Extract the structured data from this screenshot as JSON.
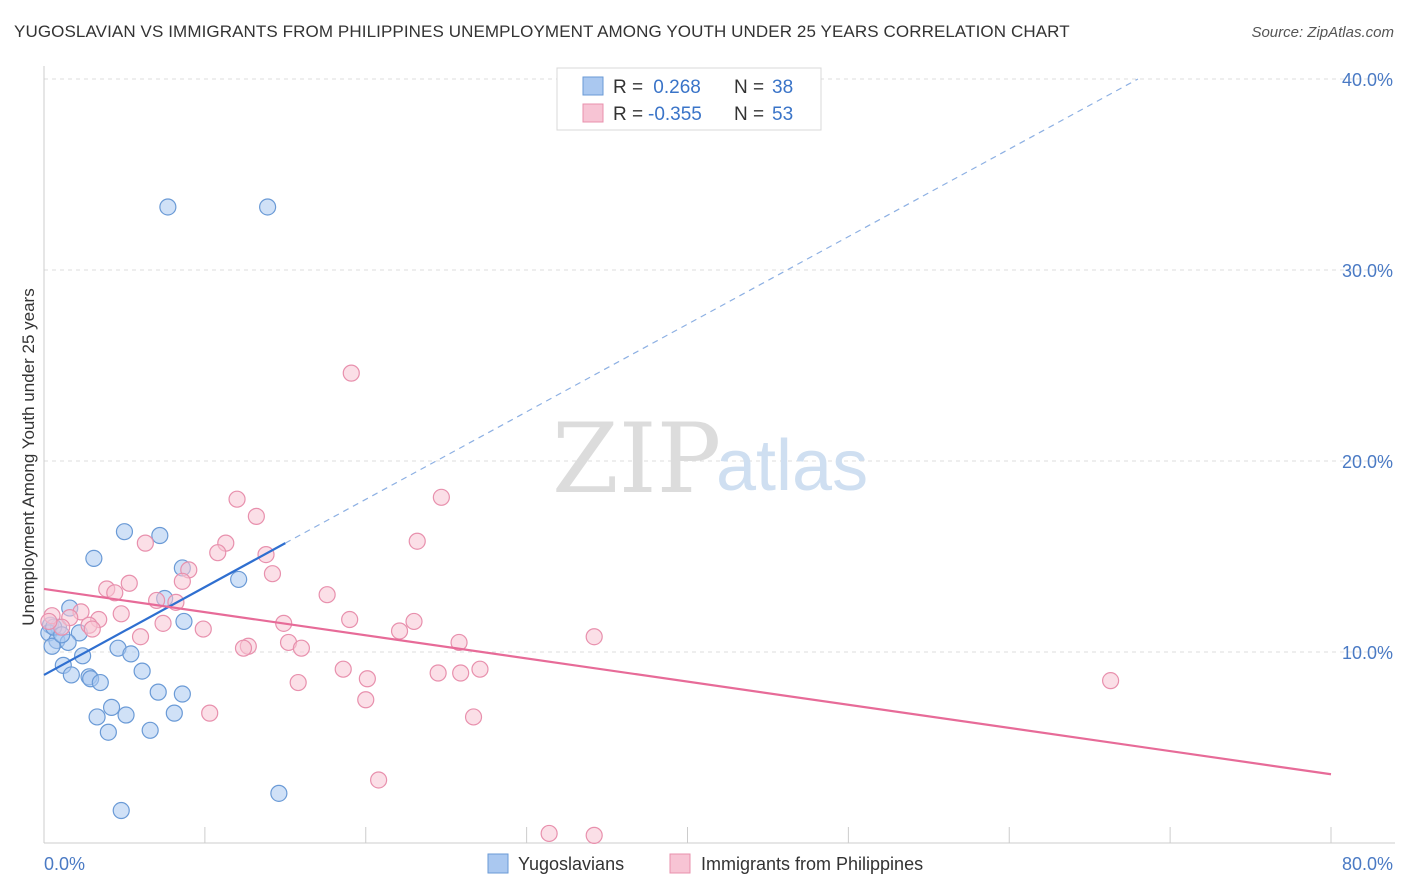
{
  "title": "YUGOSLAVIAN VS IMMIGRANTS FROM PHILIPPINES UNEMPLOYMENT AMONG YOUTH UNDER 25 YEARS CORRELATION CHART",
  "source": "Source: ZipAtlas.com",
  "watermark": {
    "zip": "ZIP",
    "atlas": "atlas"
  },
  "colors": {
    "blue_fill": "#aac8f0",
    "blue_stroke": "#6a9ad6",
    "blue_line": "#2f6fd0",
    "pink_fill": "#f7c4d4",
    "pink_stroke": "#e890ad",
    "pink_line": "#e76b98",
    "grid": "#dddddd",
    "axis_text": "#4a7ac4"
  },
  "legend": {
    "rows": [
      {
        "r_label": "R =",
        "r_value": " 0.268",
        "n_label": "N =",
        "n_value": "38",
        "series": "blue"
      },
      {
        "r_label": "R =",
        "r_value": "-0.355",
        "n_label": "N =",
        "n_value": "53",
        "series": "pink"
      }
    ]
  },
  "chart_data": {
    "type": "scatter",
    "title": "YUGOSLAVIAN VS IMMIGRANTS FROM PHILIPPINES UNEMPLOYMENT AMONG YOUTH UNDER 25 YEARS CORRELATION CHART",
    "xlabel": "",
    "ylabel": "Unemployment Among Youth under 25 years",
    "xlim": [
      0,
      80
    ],
    "ylim": [
      0,
      40
    ],
    "x_tick_labels": [
      "0.0%",
      "80.0%"
    ],
    "y_ticks": [
      10,
      20,
      30,
      40
    ],
    "y_tick_labels": [
      "10.0%",
      "20.0%",
      "30.0%",
      "40.0%"
    ],
    "grid": true,
    "legend_labels": [
      "Yugoslavians",
      "Immigrants from Philippines"
    ],
    "series": [
      {
        "name": "Yugoslavians",
        "color": "blue",
        "r": 0.268,
        "n": 38,
        "trend": {
          "x0": 0,
          "y0": 8.8,
          "x1": 15.0,
          "y1": 15.7,
          "dashed_to_x": 68.0,
          "dashed_to_y": 40.0
        },
        "points": [
          [
            7.7,
            33.3
          ],
          [
            13.9,
            33.3
          ],
          [
            5.0,
            16.3
          ],
          [
            7.2,
            16.1
          ],
          [
            3.1,
            14.9
          ],
          [
            8.6,
            14.4
          ],
          [
            12.1,
            13.8
          ],
          [
            7.5,
            12.8
          ],
          [
            1.6,
            12.3
          ],
          [
            8.7,
            11.6
          ],
          [
            0.4,
            11.4
          ],
          [
            0.9,
            11.3
          ],
          [
            0.3,
            11.0
          ],
          [
            2.2,
            11.0
          ],
          [
            0.8,
            10.6
          ],
          [
            0.5,
            10.3
          ],
          [
            1.5,
            10.5
          ],
          [
            4.6,
            10.2
          ],
          [
            5.4,
            9.9
          ],
          [
            2.4,
            9.8
          ],
          [
            1.2,
            9.3
          ],
          [
            6.1,
            9.0
          ],
          [
            1.7,
            8.8
          ],
          [
            2.8,
            8.7
          ],
          [
            2.9,
            8.6
          ],
          [
            3.5,
            8.4
          ],
          [
            7.1,
            7.9
          ],
          [
            8.6,
            7.8
          ],
          [
            4.2,
            7.1
          ],
          [
            8.1,
            6.8
          ],
          [
            5.1,
            6.7
          ],
          [
            3.3,
            6.6
          ],
          [
            6.6,
            5.9
          ],
          [
            4.0,
            5.8
          ],
          [
            14.6,
            2.6
          ],
          [
            4.8,
            1.7
          ],
          [
            0.6,
            11.3
          ],
          [
            1.1,
            10.9
          ]
        ]
      },
      {
        "name": "Immigrants from Philippines",
        "color": "pink",
        "r": -0.355,
        "n": 53,
        "trend": {
          "x0": 0,
          "y0": 13.3,
          "x1": 80,
          "y1": 3.6
        },
        "points": [
          [
            19.1,
            24.6
          ],
          [
            12.0,
            18.0
          ],
          [
            24.7,
            18.1
          ],
          [
            13.2,
            17.1
          ],
          [
            6.3,
            15.7
          ],
          [
            11.3,
            15.7
          ],
          [
            23.2,
            15.8
          ],
          [
            10.8,
            15.2
          ],
          [
            13.8,
            15.1
          ],
          [
            14.2,
            14.1
          ],
          [
            9.0,
            14.3
          ],
          [
            8.6,
            13.7
          ],
          [
            5.3,
            13.6
          ],
          [
            3.9,
            13.3
          ],
          [
            4.4,
            13.1
          ],
          [
            17.6,
            13.0
          ],
          [
            7.0,
            12.7
          ],
          [
            8.2,
            12.6
          ],
          [
            2.3,
            12.1
          ],
          [
            4.8,
            12.0
          ],
          [
            0.5,
            11.9
          ],
          [
            1.6,
            11.8
          ],
          [
            3.4,
            11.7
          ],
          [
            19.0,
            11.7
          ],
          [
            23.0,
            11.6
          ],
          [
            14.9,
            11.5
          ],
          [
            2.8,
            11.4
          ],
          [
            7.4,
            11.5
          ],
          [
            1.1,
            11.3
          ],
          [
            9.9,
            11.2
          ],
          [
            22.1,
            11.1
          ],
          [
            34.2,
            10.8
          ],
          [
            6.0,
            10.8
          ],
          [
            15.2,
            10.5
          ],
          [
            25.8,
            10.5
          ],
          [
            12.7,
            10.3
          ],
          [
            12.4,
            10.2
          ],
          [
            16.0,
            10.2
          ],
          [
            18.6,
            9.1
          ],
          [
            27.1,
            9.1
          ],
          [
            24.5,
            8.9
          ],
          [
            25.9,
            8.9
          ],
          [
            20.1,
            8.6
          ],
          [
            15.8,
            8.4
          ],
          [
            66.3,
            8.5
          ],
          [
            20.0,
            7.5
          ],
          [
            10.3,
            6.8
          ],
          [
            26.7,
            6.6
          ],
          [
            20.8,
            3.3
          ],
          [
            31.4,
            0.5
          ],
          [
            34.2,
            0.4
          ],
          [
            0.3,
            11.6
          ],
          [
            3.0,
            11.2
          ]
        ]
      }
    ]
  }
}
